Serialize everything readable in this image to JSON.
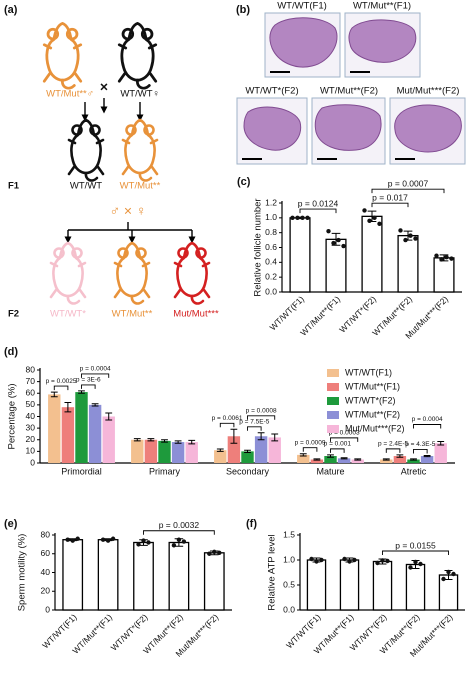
{
  "panel_a": {
    "label": "(a)",
    "parents": [
      "WT/Mut**♂",
      "WT/WT♀"
    ],
    "cross": "×",
    "f1_label": "F1",
    "f1": [
      "WT/WT",
      "WT/Mut**"
    ],
    "cross_f1": "♂ × ♀",
    "f2_label": "F2",
    "f2": [
      "WT/WT*",
      "WT/Mut**",
      "Mut/Mut***"
    ]
  },
  "panel_b": {
    "label": "(b)",
    "images": [
      "WT/WT(F1)",
      "WT/Mut**(F1)",
      "WT/WT*(F2)",
      "WT/Mut**(F2)",
      "Mut/Mut***(F2)"
    ]
  },
  "chart_data": [
    {
      "type": "bar",
      "panel_label": "(c)",
      "ylabel": "Relative follicle number",
      "categories": [
        "WT/WT(F1)",
        "WT/Mut**(F1)",
        "WT/WT*(F2)",
        "WT/Mut**(F2)",
        "Mut/Mut***(F2)"
      ],
      "values": [
        1.0,
        0.71,
        1.02,
        0.76,
        0.46
      ],
      "errors": [
        0.01,
        0.08,
        0.07,
        0.06,
        0.04
      ],
      "points": [
        [
          1.0,
          1.0,
          1.0,
          1.0
        ],
        [
          0.82,
          0.66,
          0.7,
          0.62
        ],
        [
          1.1,
          0.96,
          1.0,
          0.92
        ],
        [
          0.83,
          0.7,
          0.76,
          0.72
        ],
        [
          0.49,
          0.44,
          0.47,
          0.45
        ]
      ],
      "color": "#ffffff",
      "ylim": [
        0,
        1.2
      ],
      "yticks": [
        {
          "value": 0,
          "label": "0.0"
        },
        0.2,
        0.4,
        0.6,
        0.8,
        {
          "value": 1,
          "label": "1.0"
        },
        1.2
      ],
      "annotations": [
        "p = 0.0124",
        "p = 0.017",
        "p = 0.0007"
      ]
    },
    {
      "type": "grouped-bar",
      "panel_label": "(d)",
      "ylabel": "Percentage (%)",
      "categories": [
        "Primordial",
        "Primary",
        "Secondary",
        "Mature",
        "Atretic"
      ],
      "series": [
        {
          "name": "WT/WT(F1)",
          "color": "#f3c08f",
          "values": [
            59,
            20,
            11,
            7,
            3
          ],
          "errors": [
            2,
            1,
            1,
            1,
            0.5
          ]
        },
        {
          "name": "WT/Mut**(F1)",
          "color": "#ee7f7b",
          "values": [
            48,
            20,
            23,
            3,
            6
          ],
          "errors": [
            4,
            1,
            6,
            0.5,
            1
          ]
        },
        {
          "name": "WT/WT*(F2)",
          "color": "#1e9a3c",
          "values": [
            61,
            19,
            10,
            6,
            3
          ],
          "errors": [
            1,
            1,
            1,
            1,
            0.5
          ]
        },
        {
          "name": "WT/Mut**(F2)",
          "color": "#8c8fd6",
          "values": [
            50,
            18,
            23,
            4,
            6
          ],
          "errors": [
            1,
            1,
            3,
            0.5,
            0.5
          ]
        },
        {
          "name": "Mut/Mut***(F2)",
          "color": "#f6b6d9",
          "values": [
            40,
            18,
            22,
            3,
            17
          ],
          "errors": [
            3,
            1.5,
            3,
            0.5,
            1.5
          ]
        }
      ],
      "ylim": [
        0,
        80
      ],
      "yticks": [
        0,
        10,
        20,
        30,
        40,
        50,
        60,
        70,
        80
      ],
      "legend": "upper right",
      "annotations": [
        [
          "p = 0.0025",
          "p = 0.0004",
          "p = 3E-6"
        ],
        [],
        [
          "p = 0.0061",
          "p = 0.0008",
          "p = 7.5E-5"
        ],
        [
          "p = 0.0009",
          "p = 0.0003",
          "p = 0.001"
        ],
        [
          "p = 2.4E-5",
          "p = 0.0004",
          "p = 4.3E-5"
        ]
      ]
    },
    {
      "type": "bar",
      "panel_label": "(e)",
      "ylabel": "Sperm motility (%)",
      "categories": [
        "WT/WT(F1)",
        "WT/Mut**(F1)",
        "WT/WT*(F2)",
        "WT/Mut**(F2)",
        "Mut/Mut***(F2)"
      ],
      "values": [
        75,
        75,
        72,
        72,
        61
      ],
      "errors": [
        1,
        1,
        3,
        4,
        2
      ],
      "points": [
        [
          75,
          74,
          76
        ],
        [
          75,
          74,
          76
        ],
        [
          70,
          74,
          72
        ],
        [
          69,
          75,
          73
        ],
        [
          60,
          62,
          61
        ]
      ],
      "color": "#ffffff",
      "ylim": [
        0,
        80
      ],
      "yticks": [
        0,
        20,
        40,
        60,
        80
      ],
      "annotations": [
        "p = 0.0032"
      ]
    },
    {
      "type": "bar",
      "panel_label": "(f)",
      "ylabel": "Relative ATP level",
      "categories": [
        "WT/WT(F1)",
        "WT/Mut**(F1)",
        "WT/WT*(F2)",
        "WT/Mut**(F2)",
        "Mut/Mut***(F2)"
      ],
      "values": [
        1.0,
        1.0,
        0.97,
        0.91,
        0.7
      ],
      "errors": [
        0.04,
        0.04,
        0.05,
        0.08,
        0.09
      ],
      "points": [
        [
          1.02,
          0.97,
          1.0
        ],
        [
          1.02,
          0.97,
          1.0
        ],
        [
          0.94,
          0.99,
          0.98
        ],
        [
          0.85,
          0.96,
          0.92
        ],
        [
          0.62,
          0.76,
          0.72
        ]
      ],
      "color": "#ffffff",
      "ylim": [
        0,
        1.5
      ],
      "yticks": [
        {
          "value": 0,
          "label": "0.0"
        },
        0.5,
        {
          "value": 1,
          "label": "1.0"
        },
        1.5
      ],
      "annotations": [
        "p = 0.0155"
      ]
    }
  ]
}
